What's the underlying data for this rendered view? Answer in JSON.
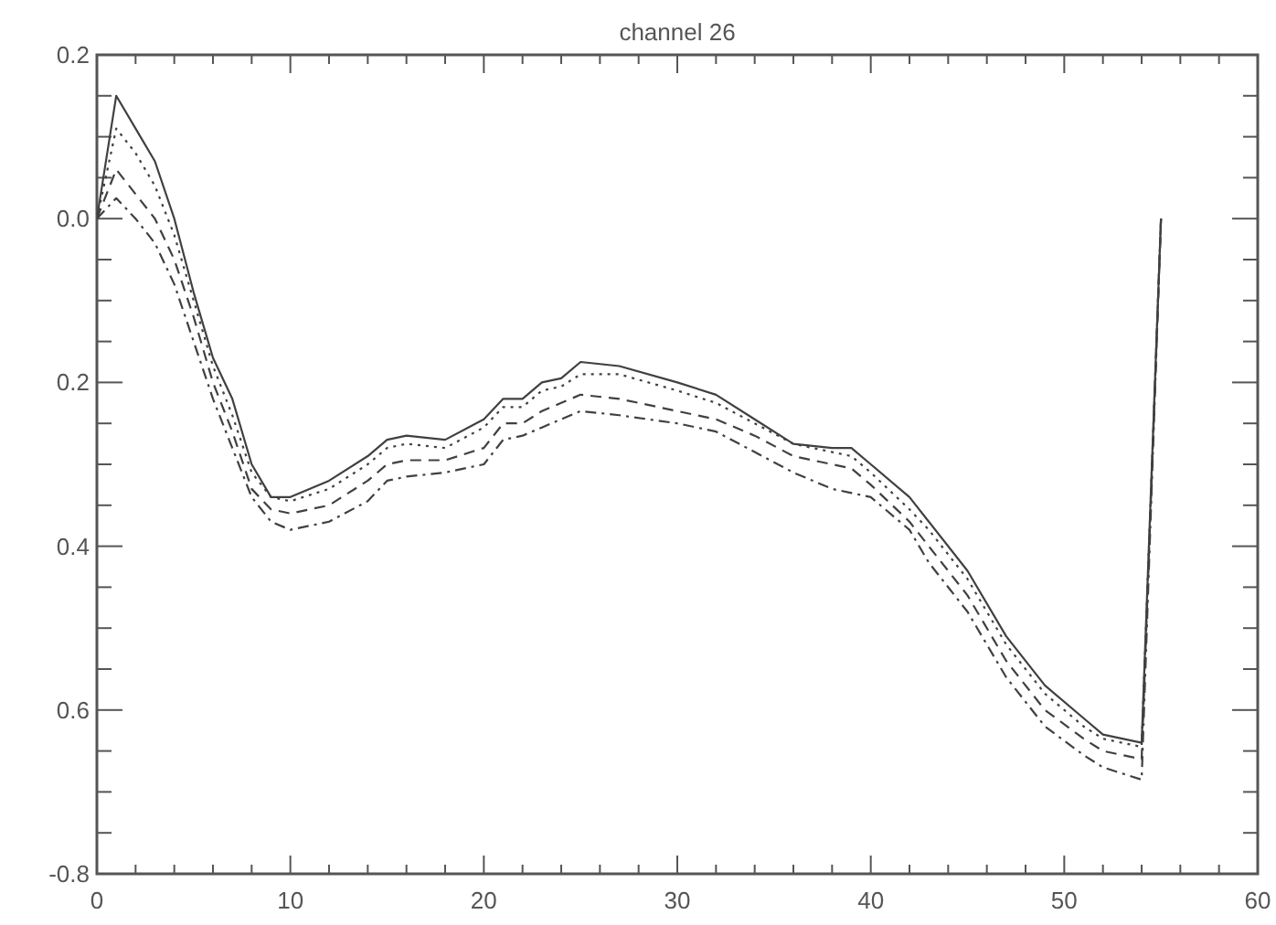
{
  "chart_data": {
    "type": "line",
    "title": "channel 26",
    "x": [
      0,
      1,
      2,
      3,
      4,
      5,
      6,
      7,
      8,
      9,
      10,
      12,
      14,
      15,
      16,
      18,
      20,
      21,
      22,
      23,
      24,
      25,
      27,
      30,
      32,
      34,
      36,
      38,
      39,
      40,
      42,
      43,
      45,
      47,
      49,
      51,
      52,
      54,
      55
    ],
    "series": [
      {
        "color": "#404040",
        "line_style": "solid",
        "values": [
          0,
          0.15,
          0.11,
          0.07,
          0.0,
          -0.09,
          -0.17,
          -0.22,
          -0.3,
          -0.34,
          -0.34,
          -0.32,
          -0.29,
          -0.27,
          -0.265,
          -0.27,
          -0.245,
          -0.22,
          -0.22,
          -0.2,
          -0.195,
          -0.175,
          -0.18,
          -0.2,
          -0.215,
          -0.245,
          -0.275,
          -0.28,
          -0.28,
          -0.3,
          -0.34,
          -0.37,
          -0.43,
          -0.51,
          -0.57,
          -0.61,
          -0.63,
          -0.64,
          0.0
        ]
      },
      {
        "color": "#404040",
        "line_style": "dotted",
        "values": [
          0,
          0.11,
          0.08,
          0.04,
          -0.02,
          -0.1,
          -0.18,
          -0.24,
          -0.31,
          -0.34,
          -0.345,
          -0.33,
          -0.3,
          -0.28,
          -0.275,
          -0.28,
          -0.255,
          -0.23,
          -0.23,
          -0.21,
          -0.205,
          -0.19,
          -0.19,
          -0.21,
          -0.225,
          -0.25,
          -0.275,
          -0.285,
          -0.29,
          -0.31,
          -0.355,
          -0.38,
          -0.44,
          -0.52,
          -0.58,
          -0.62,
          -0.635,
          -0.645,
          0.0
        ]
      },
      {
        "color": "#404040",
        "line_style": "dashed",
        "values": [
          0,
          0.06,
          0.03,
          0.0,
          -0.05,
          -0.12,
          -0.2,
          -0.26,
          -0.33,
          -0.355,
          -0.36,
          -0.35,
          -0.32,
          -0.3,
          -0.295,
          -0.295,
          -0.28,
          -0.25,
          -0.25,
          -0.235,
          -0.225,
          -0.215,
          -0.22,
          -0.235,
          -0.245,
          -0.265,
          -0.29,
          -0.3,
          -0.305,
          -0.325,
          -0.37,
          -0.4,
          -0.46,
          -0.54,
          -0.6,
          -0.635,
          -0.65,
          -0.66,
          0.0
        ]
      },
      {
        "color": "#404040",
        "line_style": "dashdot",
        "values": [
          0,
          0.025,
          0.0,
          -0.03,
          -0.08,
          -0.15,
          -0.22,
          -0.28,
          -0.34,
          -0.37,
          -0.38,
          -0.37,
          -0.345,
          -0.32,
          -0.315,
          -0.31,
          -0.3,
          -0.27,
          -0.265,
          -0.255,
          -0.245,
          -0.235,
          -0.24,
          -0.25,
          -0.26,
          -0.285,
          -0.31,
          -0.33,
          -0.335,
          -0.34,
          -0.38,
          -0.42,
          -0.48,
          -0.56,
          -0.62,
          -0.655,
          -0.67,
          -0.685,
          0.0
        ]
      }
    ],
    "xlim": [
      0,
      60
    ],
    "xticks": [
      0,
      {
        "value": 2,
        "label": null
      },
      {
        "value": 4,
        "label": null
      },
      {
        "value": 6,
        "label": null
      },
      {
        "value": 8,
        "label": null
      },
      10,
      {
        "value": 12,
        "label": null
      },
      {
        "value": 14,
        "label": null
      },
      {
        "value": 16,
        "label": null
      },
      {
        "value": 18,
        "label": null
      },
      20,
      {
        "value": 22,
        "label": null
      },
      {
        "value": 24,
        "label": null
      },
      {
        "value": 26,
        "label": null
      },
      {
        "value": 28,
        "label": null
      },
      30,
      {
        "value": 32,
        "label": null
      },
      {
        "value": 34,
        "label": null
      },
      {
        "value": 36,
        "label": null
      },
      {
        "value": 38,
        "label": null
      },
      40,
      {
        "value": 42,
        "label": null
      },
      {
        "value": 44,
        "label": null
      },
      {
        "value": 46,
        "label": null
      },
      {
        "value": 48,
        "label": null
      },
      50,
      {
        "value": 52,
        "label": null
      },
      {
        "value": 54,
        "label": null
      },
      {
        "value": 56,
        "label": null
      },
      {
        "value": 58,
        "label": null
      },
      60
    ],
    "ylim": [
      -0.8,
      0.2
    ],
    "yticks": [
      {
        "value": -0.8,
        "label": "-0.8"
      },
      {
        "value": -0.75,
        "label": null
      },
      {
        "value": -0.7,
        "label": null
      },
      {
        "value": -0.65,
        "label": null
      },
      {
        "value": -0.6,
        "label": "0.6"
      },
      {
        "value": -0.55,
        "label": null
      },
      {
        "value": -0.5,
        "label": null
      },
      {
        "value": -0.45,
        "label": null
      },
      {
        "value": -0.4,
        "label": "0.4"
      },
      {
        "value": -0.35,
        "label": null
      },
      {
        "value": -0.3,
        "label": null
      },
      {
        "value": -0.25,
        "label": null
      },
      {
        "value": -0.2,
        "label": "0.2"
      },
      {
        "value": -0.15,
        "label": null
      },
      {
        "value": -0.1,
        "label": null
      },
      {
        "value": -0.05,
        "label": null
      },
      {
        "value": 0,
        "label": "0.0"
      },
      {
        "value": 0.05,
        "label": null
      },
      {
        "value": 0.1,
        "label": null
      },
      {
        "value": 0.15,
        "label": null
      },
      {
        "value": 0.2,
        "label": "0.2"
      }
    ],
    "grid": false,
    "marker": "none"
  }
}
